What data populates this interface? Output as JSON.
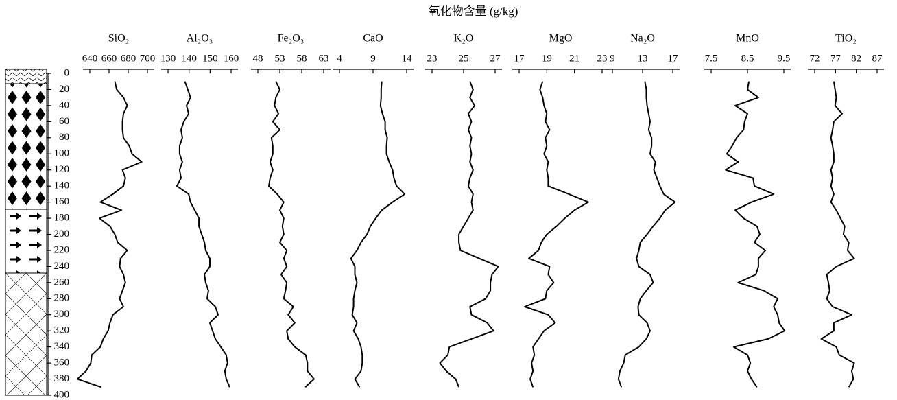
{
  "chart_data": {
    "type": "depth-profile",
    "title": "氧化物含量 (g/kg)",
    "ylim": [
      0,
      400
    ],
    "yticks": [
      0,
      20,
      40,
      60,
      80,
      100,
      120,
      140,
      160,
      180,
      200,
      220,
      240,
      260,
      280,
      300,
      320,
      340,
      360,
      380,
      400
    ],
    "depth": [
      10,
      20,
      30,
      40,
      50,
      60,
      70,
      80,
      90,
      100,
      110,
      120,
      130,
      140,
      150,
      160,
      170,
      180,
      190,
      200,
      210,
      220,
      230,
      240,
      250,
      260,
      270,
      280,
      290,
      300,
      310,
      320,
      330,
      340,
      350,
      360,
      370,
      380,
      390
    ],
    "color": "#000000",
    "panels": [
      {
        "name": "SiO₂",
        "xlim": [
          640,
          700
        ],
        "xticks": [
          640,
          660,
          680,
          700
        ],
        "values": [
          666,
          668,
          675,
          679,
          675,
          674,
          674,
          675,
          681,
          684,
          694,
          674,
          677,
          675,
          664,
          651,
          673,
          650,
          661,
          666,
          669,
          679,
          672,
          671,
          675,
          677,
          674,
          671,
          675,
          664,
          661,
          659,
          654,
          651,
          642,
          641,
          636,
          627,
          652
        ]
      },
      {
        "name": "Al₂O₃",
        "xlim": [
          130,
          160
        ],
        "xticks": [
          130,
          140,
          150,
          160
        ],
        "values": [
          138,
          139.4,
          140.7,
          138.8,
          139.8,
          137.5,
          136.2,
          136.8,
          135.5,
          135.5,
          136.8,
          135.5,
          136.2,
          134.2,
          139.8,
          140.7,
          142.7,
          144.7,
          144.7,
          146,
          147.3,
          147.9,
          149.9,
          149.9,
          147.3,
          147.9,
          149.2,
          148.6,
          152.5,
          153.8,
          149.9,
          151.2,
          152.5,
          155.1,
          157.7,
          158.3,
          157,
          157.7,
          159.3
        ]
      },
      {
        "name": "Fe₂O₃",
        "xlim": [
          48,
          63
        ],
        "xticks": [
          48,
          53,
          58,
          63
        ],
        "values": [
          52.1,
          53,
          52.1,
          51.8,
          52.7,
          51.4,
          53,
          51.1,
          51.4,
          51.4,
          50.8,
          51.4,
          50.8,
          50.5,
          52.4,
          53.9,
          53,
          53.9,
          53.6,
          53.9,
          53,
          54.6,
          53.9,
          54.6,
          53.3,
          54.6,
          54.3,
          53.9,
          56.1,
          54.9,
          56.4,
          54.6,
          54.9,
          56.4,
          58.9,
          59.3,
          59.3,
          60.8,
          58.8
        ]
      },
      {
        "name": "CaO",
        "xlim": [
          4,
          14
        ],
        "xticks": [
          4,
          9,
          14
        ],
        "values": [
          10.3,
          10.2,
          10.2,
          10.1,
          10.4,
          10.8,
          10.8,
          11.1,
          11,
          11,
          11.4,
          11.9,
          12.1,
          12.5,
          13.7,
          11.9,
          10.3,
          9.4,
          8.6,
          8.1,
          7.2,
          6.6,
          5.7,
          6.3,
          6.3,
          6.6,
          6.3,
          6.1,
          6.1,
          5.9,
          6.6,
          6.1,
          6.8,
          7.2,
          7.4,
          7.4,
          7.2,
          6.3,
          7
        ]
      },
      {
        "name": "K₂O",
        "xlim": [
          23,
          27
        ],
        "xticks": [
          23,
          25,
          27
        ],
        "values": [
          25.4,
          25.6,
          25.4,
          25.7,
          25.3,
          25.5,
          25.3,
          25.5,
          25.4,
          25.5,
          25.4,
          25.6,
          25.4,
          25.3,
          25.6,
          25.5,
          25.6,
          25.3,
          25,
          24.7,
          24.7,
          24.8,
          26,
          27.2,
          26.8,
          26.7,
          26.7,
          26.4,
          25.4,
          25.5,
          26.5,
          26.9,
          25.5,
          24.1,
          24,
          23.5,
          23.9,
          24.5,
          24.7
        ]
      },
      {
        "name": "MgO",
        "xlim": [
          17,
          23
        ],
        "xticks": [
          17,
          19,
          21,
          23
        ],
        "values": [
          18.7,
          18.5,
          18.7,
          18.8,
          19,
          18.9,
          19.2,
          18.9,
          19,
          18.8,
          19.1,
          19,
          19.1,
          19.1,
          20.6,
          22,
          21,
          20.3,
          19.7,
          19,
          18.6,
          18.4,
          17.7,
          19.2,
          19.1,
          19.5,
          19,
          18.9,
          17.4,
          19.1,
          19.6,
          18.8,
          18.4,
          18,
          18.1,
          17.9,
          18,
          17.8,
          18
        ]
      },
      {
        "name": "Na₂O",
        "xlim": [
          9,
          17
        ],
        "xticks": [
          9,
          13,
          17
        ],
        "values": [
          13.3,
          13.5,
          13.5,
          13.6,
          13.8,
          14,
          13.8,
          14.2,
          14.2,
          14,
          14.7,
          14.5,
          14.9,
          15.3,
          15.8,
          17.3,
          16,
          15.3,
          14.4,
          13.6,
          12.7,
          12.5,
          12.2,
          12.5,
          14,
          14.4,
          13.5,
          12.7,
          12.4,
          12.5,
          13.6,
          14,
          13.5,
          12.5,
          10.7,
          10.5,
          10,
          9.8,
          10.2
        ]
      },
      {
        "name": "MnO",
        "xlim": [
          7.5,
          9.5
        ],
        "xticks": [
          7.5,
          8.5,
          9.5
        ],
        "values": [
          8.54,
          8.5,
          8.8,
          8.16,
          8.5,
          8.42,
          8.39,
          8.2,
          8.08,
          7.93,
          8.24,
          7.9,
          8.65,
          8.69,
          9.22,
          8.61,
          8.16,
          8.39,
          8.76,
          8.84,
          8.69,
          8.99,
          8.8,
          8.8,
          8.73,
          8.24,
          8.95,
          9.33,
          9.22,
          9.33,
          9.37,
          9.52,
          9.07,
          8.12,
          8.5,
          8.58,
          8.5,
          8.61,
          8.76
        ]
      },
      {
        "name": "TiO₂",
        "xlim": [
          72,
          87
        ],
        "xticks": [
          72,
          77,
          82,
          87
        ],
        "values": [
          76.6,
          76.9,
          77.2,
          76.9,
          78.6,
          76.6,
          76.3,
          75.9,
          76.3,
          76.6,
          76.6,
          75.9,
          76.3,
          75.9,
          76.6,
          75.9,
          77.2,
          78.2,
          79.2,
          78.9,
          80.2,
          79.9,
          81.5,
          77.2,
          74.9,
          75.3,
          75.6,
          74.9,
          76.3,
          80.9,
          76.6,
          76.6,
          73.6,
          77.2,
          77.9,
          81.5,
          80.9,
          81.3,
          80.2
        ]
      }
    ]
  }
}
